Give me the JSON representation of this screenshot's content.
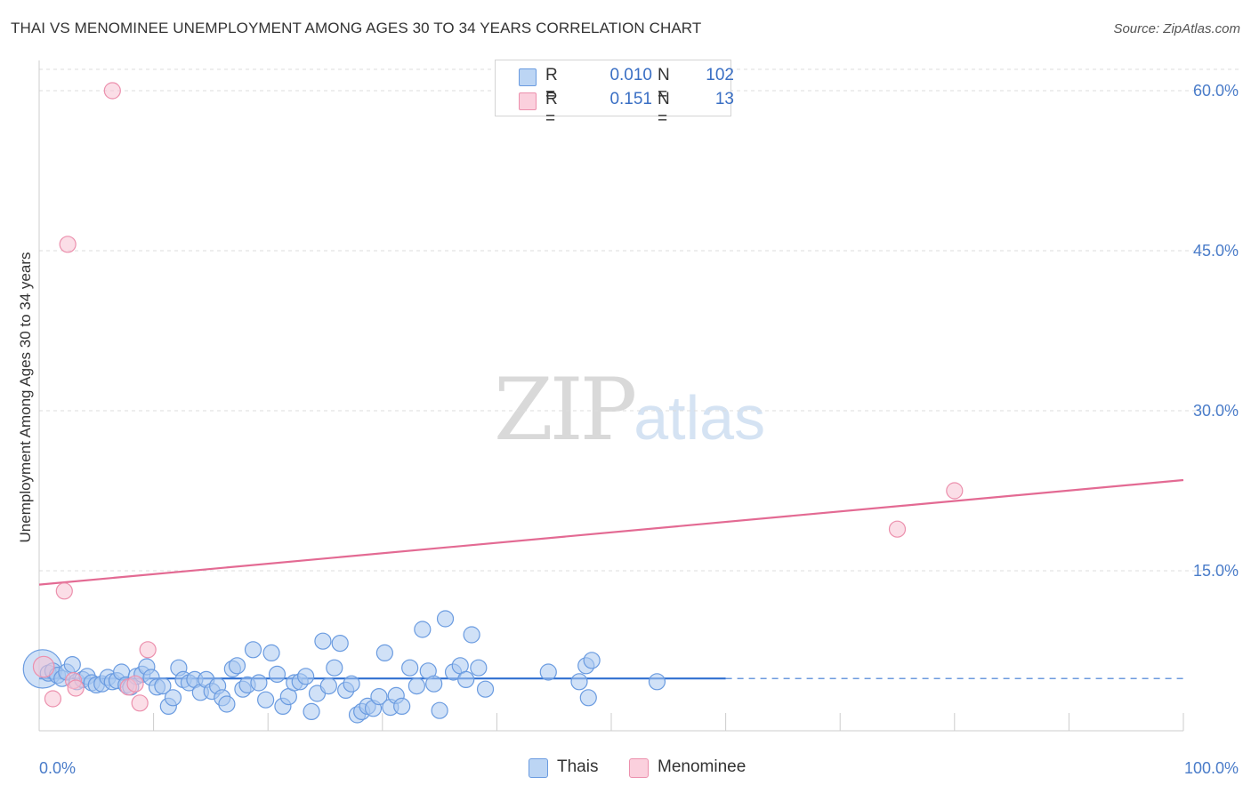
{
  "title": "THAI VS MENOMINEE UNEMPLOYMENT AMONG AGES 30 TO 34 YEARS CORRELATION CHART",
  "source": "Source: ZipAtlas.com",
  "watermark": {
    "zip": "ZIP",
    "atlas": "atlas"
  },
  "legend": {
    "thais": {
      "r_label": "R =",
      "r_value": "0.010",
      "n_label": "N =",
      "n_value": "102"
    },
    "menominee": {
      "r_label": "R =",
      "r_value": "0.151",
      "n_label": "N =",
      "n_value": "13"
    }
  },
  "bottom_legend": {
    "thais": "Thais",
    "menominee": "Menominee"
  },
  "colors": {
    "thais_fill": "#a9c8f0",
    "thais_stroke": "#6a9be0",
    "thais_line": "#2f6fd0",
    "menominee_fill": "#f8c3d3",
    "menominee_stroke": "#ec90ad",
    "menominee_line": "#e36a93",
    "grid": "#dddddd",
    "axis_text": "#4a7cc9"
  },
  "chart_data": {
    "type": "scatter",
    "title": "THAI VS MENOMINEE UNEMPLOYMENT AMONG AGES 30 TO 34 YEARS CORRELATION CHART",
    "xlabel": "",
    "ylabel": "Unemployment Among Ages 30 to 34 years",
    "xlim": [
      0,
      100
    ],
    "ylim": [
      0,
      62.5
    ],
    "x_tick_labels": [
      {
        "value": 0,
        "label": "0.0%"
      },
      {
        "value": 100,
        "label": "100.0%"
      }
    ],
    "y_ticks": [
      {
        "value": 15,
        "label": "15.0%"
      },
      {
        "value": 30,
        "label": "30.0%"
      },
      {
        "value": 45,
        "label": "45.0%"
      },
      {
        "value": 60,
        "label": "60.0%"
      }
    ],
    "series": [
      {
        "name": "Thais",
        "r": 0.01,
        "n": 102,
        "trend": {
          "x0": 0,
          "y0": 4.9,
          "x1": 60,
          "y1": 4.9,
          "dash_to_x": 100
        },
        "points": [
          [
            0.3,
            5.8,
            2.4
          ],
          [
            0.8,
            5.4,
            1
          ],
          [
            1.2,
            5.6,
            1
          ],
          [
            1.6,
            5.2,
            1
          ],
          [
            2.0,
            4.9,
            1
          ],
          [
            2.4,
            5.5,
            1
          ],
          [
            2.9,
            6.2,
            1
          ],
          [
            3.3,
            4.6,
            1
          ],
          [
            3.8,
            4.8,
            1
          ],
          [
            4.2,
            5.1,
            1
          ],
          [
            4.6,
            4.5,
            1
          ],
          [
            5.0,
            4.3,
            1
          ],
          [
            5.5,
            4.4,
            1
          ],
          [
            6.0,
            5.0,
            1
          ],
          [
            6.4,
            4.6,
            1
          ],
          [
            6.8,
            4.7,
            1
          ],
          [
            7.2,
            5.5,
            1
          ],
          [
            7.6,
            4.3,
            1
          ],
          [
            8.0,
            4.1,
            1
          ],
          [
            8.5,
            5.1,
            1
          ],
          [
            9.0,
            5.3,
            1
          ],
          [
            9.4,
            6.0,
            1
          ],
          [
            9.8,
            5.0,
            1
          ],
          [
            10.3,
            4.1,
            1
          ],
          [
            10.8,
            4.2,
            1
          ],
          [
            11.3,
            2.3,
            1
          ],
          [
            11.7,
            3.1,
            1
          ],
          [
            12.2,
            5.9,
            1
          ],
          [
            12.6,
            4.8,
            1
          ],
          [
            13.1,
            4.5,
            1
          ],
          [
            13.6,
            4.8,
            1
          ],
          [
            14.1,
            3.6,
            1
          ],
          [
            14.6,
            4.8,
            1
          ],
          [
            15.1,
            3.7,
            1
          ],
          [
            15.6,
            4.2,
            1
          ],
          [
            16.0,
            3.1,
            1
          ],
          [
            16.4,
            2.5,
            1
          ],
          [
            16.9,
            5.8,
            1
          ],
          [
            17.3,
            6.1,
            1
          ],
          [
            17.8,
            3.9,
            1
          ],
          [
            18.2,
            4.3,
            1
          ],
          [
            18.7,
            7.6,
            1
          ],
          [
            19.2,
            4.5,
            1
          ],
          [
            19.8,
            2.9,
            1
          ],
          [
            20.3,
            7.3,
            1
          ],
          [
            20.8,
            5.3,
            1
          ],
          [
            21.3,
            2.3,
            1
          ],
          [
            21.8,
            3.2,
            1
          ],
          [
            22.3,
            4.5,
            1
          ],
          [
            22.8,
            4.6,
            1
          ],
          [
            23.3,
            5.1,
            1
          ],
          [
            23.8,
            1.8,
            1
          ],
          [
            24.3,
            3.5,
            1
          ],
          [
            24.8,
            8.4,
            1
          ],
          [
            25.3,
            4.2,
            1
          ],
          [
            25.8,
            5.9,
            1
          ],
          [
            26.3,
            8.2,
            1
          ],
          [
            26.8,
            3.8,
            1
          ],
          [
            27.3,
            4.4,
            1
          ],
          [
            27.8,
            1.5,
            1
          ],
          [
            28.2,
            1.8,
            1
          ],
          [
            28.7,
            2.3,
            1
          ],
          [
            29.2,
            2.1,
            1
          ],
          [
            29.7,
            3.2,
            1
          ],
          [
            30.2,
            7.3,
            1
          ],
          [
            30.7,
            2.2,
            1
          ],
          [
            31.2,
            3.3,
            1
          ],
          [
            31.7,
            2.3,
            1
          ],
          [
            32.4,
            5.9,
            1
          ],
          [
            33.0,
            4.2,
            1
          ],
          [
            33.5,
            9.5,
            1
          ],
          [
            34.0,
            5.6,
            1
          ],
          [
            34.5,
            4.4,
            1
          ],
          [
            35.0,
            1.9,
            1
          ],
          [
            35.5,
            10.5,
            1
          ],
          [
            36.2,
            5.5,
            1
          ],
          [
            36.8,
            6.1,
            1
          ],
          [
            37.3,
            4.8,
            1
          ],
          [
            37.8,
            9.0,
            1
          ],
          [
            38.4,
            5.9,
            1
          ],
          [
            39.0,
            3.9,
            1
          ],
          [
            44.5,
            5.5,
            1
          ],
          [
            47.2,
            4.6,
            1
          ],
          [
            47.8,
            6.1,
            1
          ],
          [
            48.3,
            6.6,
            1
          ],
          [
            48.0,
            3.1,
            1
          ],
          [
            54.0,
            4.6,
            1
          ]
        ]
      },
      {
        "name": "Menominee",
        "r": 0.151,
        "n": 13,
        "trend": {
          "x0": 0,
          "y0": 13.7,
          "x1": 100,
          "y1": 23.5
        },
        "points": [
          [
            0.4,
            6.0,
            1.3
          ],
          [
            1.2,
            3.0,
            1
          ],
          [
            2.2,
            13.1,
            1
          ],
          [
            2.5,
            45.6,
            1
          ],
          [
            3.0,
            4.7,
            1
          ],
          [
            3.2,
            4.0,
            1
          ],
          [
            6.4,
            60.0,
            1
          ],
          [
            7.8,
            4.1,
            1
          ],
          [
            8.4,
            4.4,
            1
          ],
          [
            8.8,
            2.6,
            1
          ],
          [
            9.5,
            7.6,
            1
          ],
          [
            75.0,
            18.9,
            1
          ],
          [
            80.0,
            22.5,
            1
          ]
        ]
      }
    ]
  }
}
